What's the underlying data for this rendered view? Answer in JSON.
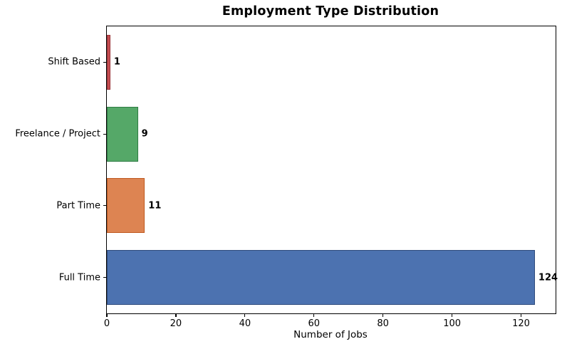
{
  "title": "Employment Type Distribution",
  "chart_data": {
    "type": "bar",
    "orientation": "horizontal",
    "title": "Employment Type Distribution",
    "xlabel": "Number of Jobs",
    "ylabel": "",
    "categories": [
      "Shift Based",
      "Freelance / Project",
      "Part Time",
      "Full Time"
    ],
    "values": [
      1,
      9,
      11,
      124
    ],
    "value_labels": [
      "1",
      "9",
      "11",
      "124"
    ],
    "bar_fill_colors": [
      "#C44E52",
      "#55A868",
      "#DD8452",
      "#4C72B0"
    ],
    "bar_edge_colors": [
      "#9B3438",
      "#2F7D44",
      "#C05A20",
      "#2F4B7C"
    ],
    "xlim": [
      0,
      130
    ],
    "xticks": [
      0,
      20,
      40,
      60,
      80,
      100,
      120
    ],
    "grid": false,
    "legend": false,
    "text_color": "#000000",
    "background_color": "#ffffff"
  }
}
